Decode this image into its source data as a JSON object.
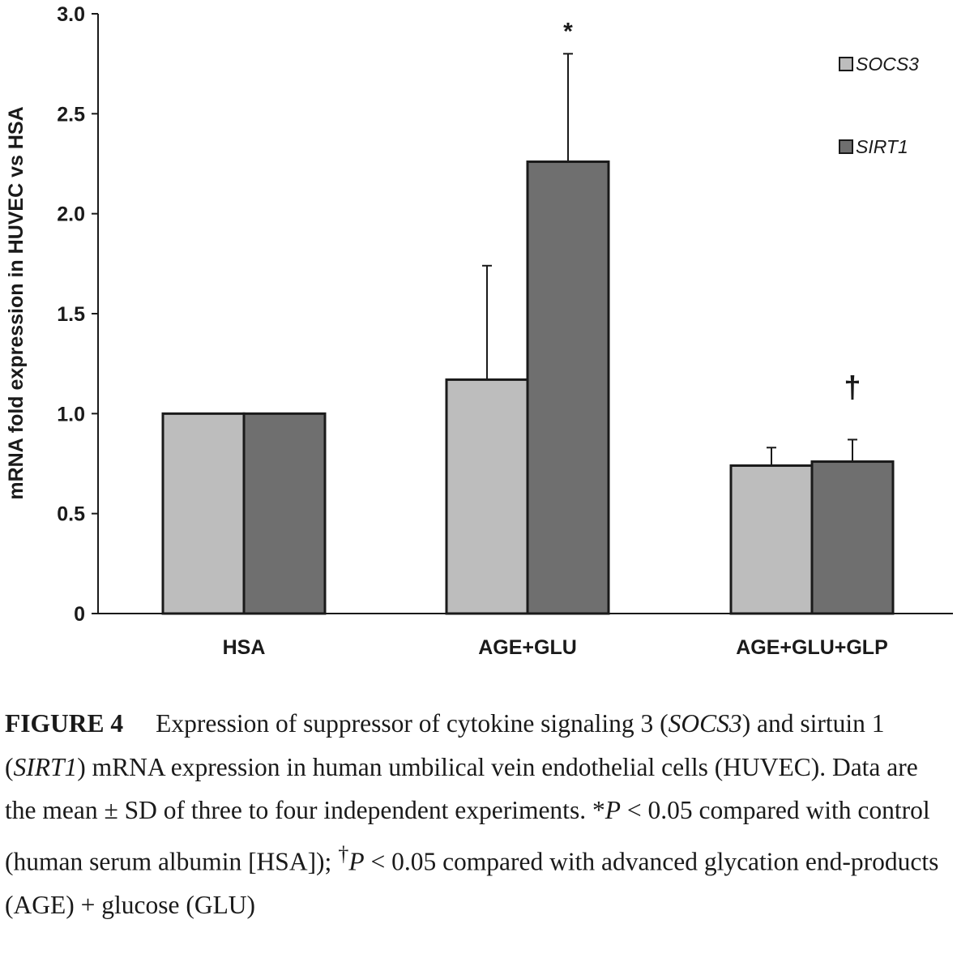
{
  "chart_data": {
    "type": "bar",
    "categories": [
      "HSA",
      "AGE+GLU",
      "AGE+GLU+GLP"
    ],
    "series": [
      {
        "name": "SOCS3",
        "values": [
          1.0,
          1.17,
          0.74
        ],
        "errors": [
          0,
          0.57,
          0.09
        ],
        "color": "#bdbdbd"
      },
      {
        "name": "SIRT1",
        "values": [
          1.0,
          2.26,
          0.76
        ],
        "errors": [
          0,
          0.54,
          0.11
        ],
        "color": "#6f6f6f"
      }
    ],
    "ylabel": "mRNA fold  expression in HUVEC  vs HSA",
    "xlabel": "",
    "ylim": [
      0,
      3.0
    ],
    "yticks": [
      "0",
      "0.5",
      "1.0",
      "1.5",
      "2.0",
      "2.5",
      "3.0"
    ],
    "ytick_values": [
      0,
      0.5,
      1.0,
      1.5,
      2.0,
      2.5,
      3.0
    ],
    "annotations": [
      {
        "text": "*",
        "category": "AGE+GLU",
        "series": "SIRT1"
      },
      {
        "text": "†",
        "category": "AGE+GLU+GLP",
        "series": "SIRT1"
      }
    ],
    "legend_position": "top-right",
    "grid": false
  },
  "caption": {
    "label": "FIGURE 4",
    "t1": "Expression of suppressor of cytokine signaling 3 (",
    "socs3": "SOCS3",
    "t2": ") and sirtuin 1 (",
    "sirt1": "SIRT1",
    "t3": ") mRNA expression in human umbilical vein endothelial cells (HUVEC). Data are the mean ± SD of three to four independent experiments. *",
    "p1": "P",
    "t4": " < 0.05 compared with control (human serum albumin [HSA]); ",
    "dagger": "†",
    "p2": "P",
    "t5": " < 0.05 compared with advanced glycation end-products (AGE) + glucose (GLU)"
  }
}
